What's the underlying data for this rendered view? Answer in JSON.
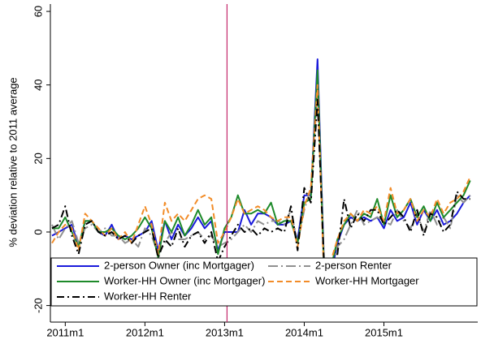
{
  "chart_data": {
    "type": "line",
    "y_label": "% deviation relative to 2011 average",
    "categories": [
      null,
      null,
      "2011m1",
      null,
      null,
      null,
      null,
      null,
      null,
      null,
      null,
      null,
      null,
      null,
      "2012m1",
      null,
      null,
      null,
      null,
      null,
      null,
      null,
      null,
      null,
      null,
      null,
      "2013m1",
      null,
      null,
      null,
      null,
      null,
      null,
      null,
      null,
      null,
      null,
      null,
      "2014m1",
      null,
      null,
      null,
      null,
      null,
      null,
      null,
      null,
      null,
      null,
      null,
      "2015m1",
      null,
      null,
      null,
      null,
      null,
      null,
      null,
      null,
      null,
      null,
      null,
      null,
      null
    ],
    "ylim": [
      -24.5,
      62
    ],
    "yticks": [
      -20,
      0,
      20,
      40,
      60
    ],
    "reference_line": {
      "index": 26,
      "color": "#c4296b"
    },
    "series": [
      {
        "name": "2-person Owner (inc Mortgager)",
        "color": "#1a1adb",
        "dash": "solid",
        "values": [
          -1,
          0,
          1,
          2,
          -4,
          3,
          3,
          0,
          -1,
          2,
          -2,
          -1,
          -2,
          -1,
          0,
          3,
          -5,
          3,
          -2,
          2,
          -1,
          1,
          4,
          1,
          3,
          -5,
          0,
          0,
          0,
          6,
          2,
          5,
          5,
          4,
          2,
          2,
          3,
          -2,
          10,
          10,
          47,
          -10,
          -12,
          -3,
          2,
          4,
          3,
          4,
          3,
          4,
          1,
          6,
          3,
          4,
          8,
          2,
          6,
          3,
          6,
          2,
          3,
          5,
          8,
          10
        ]
      },
      {
        "name": "2-person Renter",
        "color": "#909090",
        "dash": "longdashdot",
        "values": [
          2,
          -2,
          1,
          3,
          -3,
          1,
          2,
          0,
          1,
          -1,
          -1,
          -3,
          -2,
          -4,
          1,
          -1,
          -6,
          -3,
          0,
          -2,
          -2,
          -1,
          0,
          -2,
          -1,
          -4,
          -3,
          -2,
          0,
          2,
          0,
          3,
          2,
          3,
          3,
          2,
          6,
          -3,
          6,
          12,
          38,
          -8,
          -12,
          -4,
          -2,
          2,
          6,
          2,
          3,
          4,
          3,
          2,
          6,
          3,
          1,
          5,
          0,
          6,
          2,
          4,
          1,
          10,
          8,
          10
        ]
      },
      {
        "name": "Worker-HH Owner (inc Mortgager)",
        "color": "#1e8a2a",
        "dash": "solid",
        "values": [
          1,
          1,
          4,
          0,
          -4,
          3,
          3,
          0,
          0,
          1,
          -1,
          -2,
          -1,
          1,
          4,
          1,
          -7,
          3,
          0,
          4,
          -1,
          2,
          6,
          2,
          4,
          -6,
          1,
          4,
          10,
          5,
          5,
          6,
          5,
          8,
          2,
          3,
          3,
          -3,
          8,
          9,
          44,
          -12,
          -10,
          -2,
          2,
          5,
          3,
          5,
          4,
          9,
          2,
          10,
          4,
          6,
          9,
          4,
          7,
          3,
          8,
          4,
          6,
          8,
          10,
          14
        ]
      },
      {
        "name": "Worker-HH Mortgager",
        "color": "#f28c28",
        "dash": "dash",
        "values": [
          -3,
          0,
          2,
          1,
          -5,
          5,
          3,
          1,
          -1,
          1,
          -2,
          0,
          -3,
          2,
          7,
          2,
          -6,
          8,
          3,
          5,
          3,
          6,
          9,
          10,
          9,
          -3,
          0,
          4,
          9,
          5,
          6,
          7,
          6,
          4,
          3,
          4,
          4,
          -4,
          7,
          12,
          40,
          -14,
          -8,
          -2,
          3,
          5,
          3,
          6,
          5,
          7,
          3,
          12,
          5,
          6,
          9,
          3,
          6,
          4,
          9,
          5,
          8,
          9,
          11,
          15
        ]
      },
      {
        "name": "Worker-HH Renter",
        "color": "#000000",
        "dash": "dashdot",
        "values": [
          1,
          2,
          7,
          -1,
          -6,
          2,
          3,
          0,
          -1,
          0,
          -2,
          -1,
          -3,
          -1,
          0,
          1,
          -7,
          -2,
          -4,
          1,
          -4,
          -1,
          0,
          -3,
          0,
          -8,
          -4,
          -1,
          2,
          0,
          1,
          -1,
          1,
          0,
          1,
          0,
          7,
          -5,
          12,
          8,
          36,
          -10,
          -14,
          -6,
          9,
          1,
          5,
          3,
          6,
          6,
          2,
          4,
          6,
          4,
          0,
          6,
          -1,
          5,
          4,
          0,
          2,
          11,
          9,
          9
        ]
      }
    ]
  }
}
